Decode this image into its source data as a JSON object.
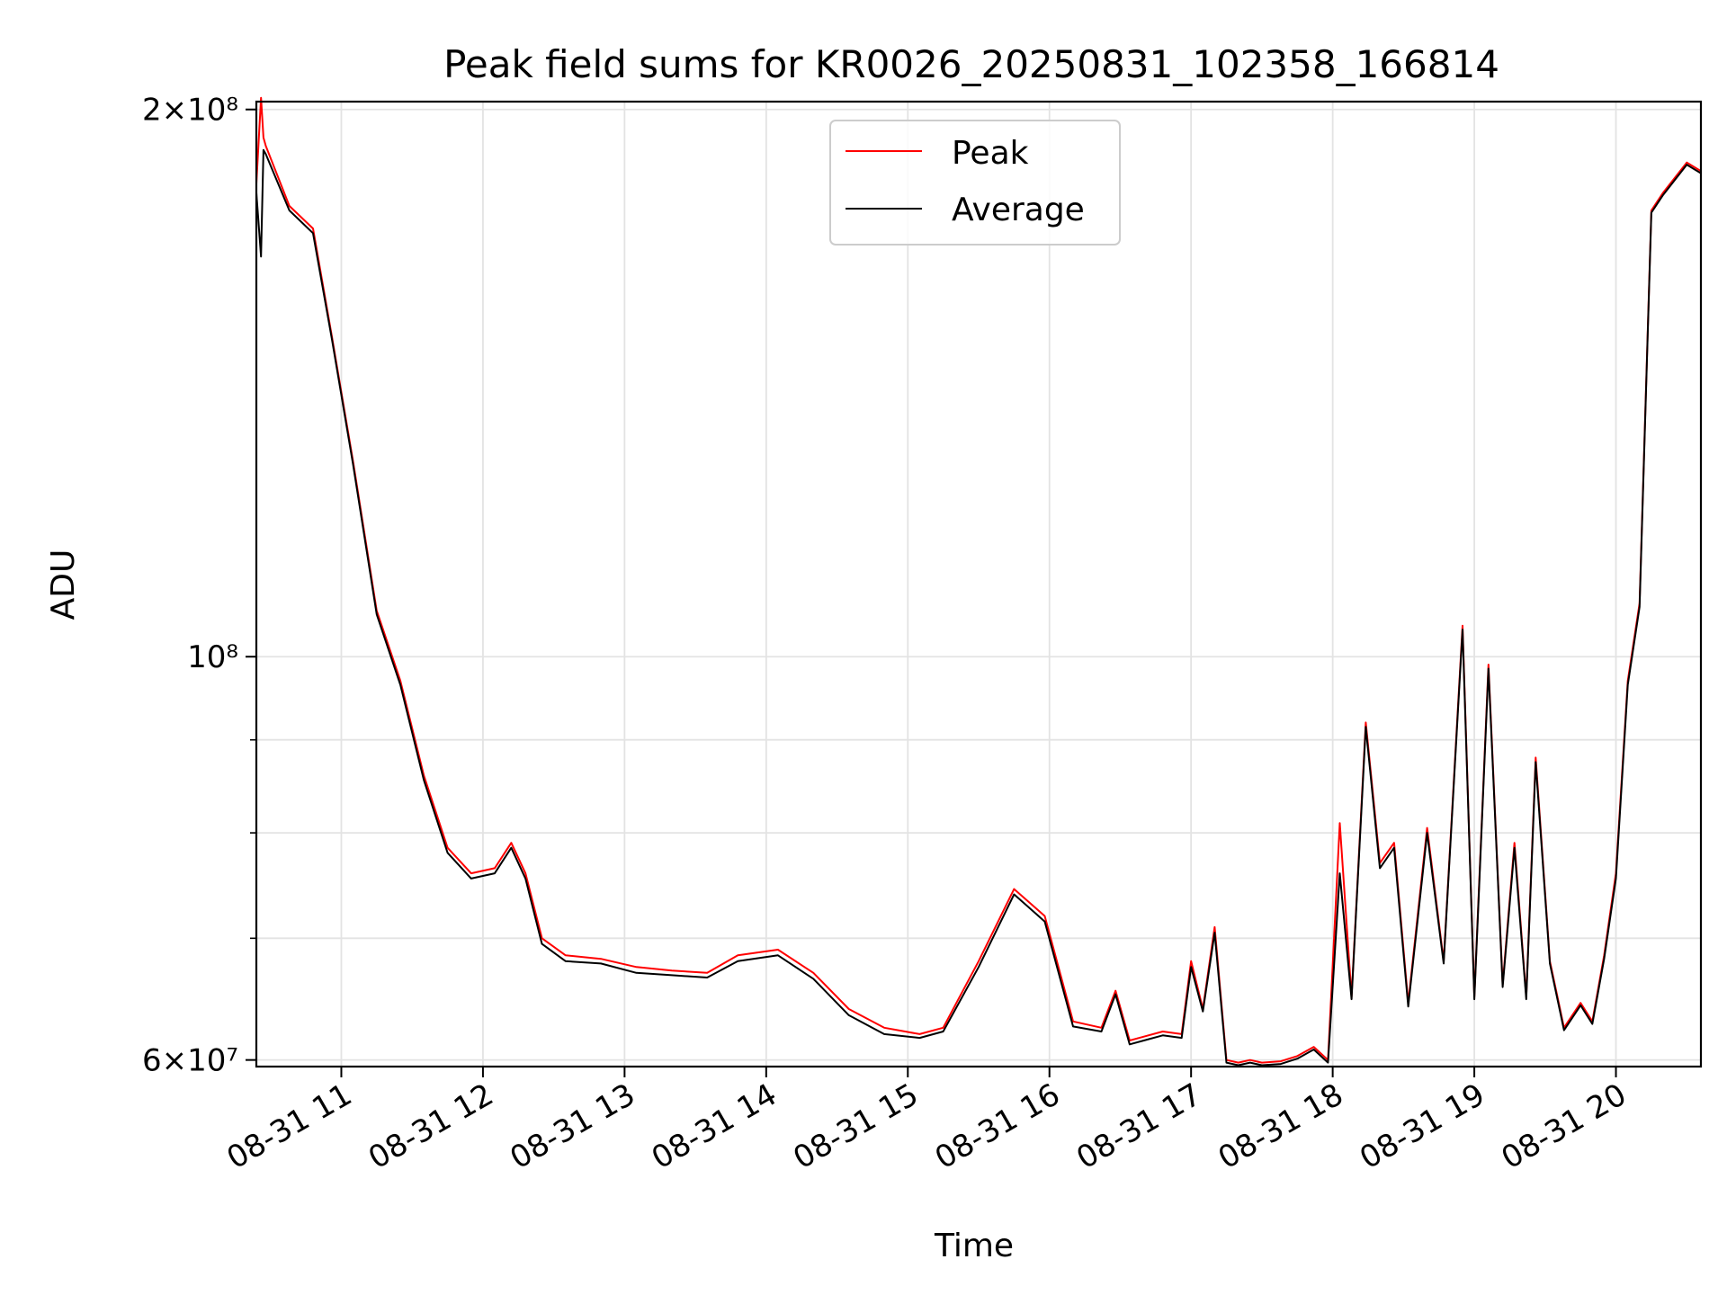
{
  "chart_data": {
    "type": "line",
    "title": "Peak field sums for KR0026_20250831_102358_166814",
    "xlabel": "Time",
    "ylabel": "ADU",
    "y_scale": "log",
    "grid": true,
    "legend_placement": "upper center",
    "xlim": [
      "2025-08-31 10:24",
      "2025-08-31 20:36"
    ],
    "ylim": [
      59500000,
      202000000
    ],
    "x_ticks": [
      {
        "value": "2025-08-31 11:00",
        "label": "08-31 11"
      },
      {
        "value": "2025-08-31 12:00",
        "label": "08-31 12"
      },
      {
        "value": "2025-08-31 13:00",
        "label": "08-31 13"
      },
      {
        "value": "2025-08-31 14:00",
        "label": "08-31 14"
      },
      {
        "value": "2025-08-31 15:00",
        "label": "08-31 15"
      },
      {
        "value": "2025-08-31 16:00",
        "label": "08-31 16"
      },
      {
        "value": "2025-08-31 17:00",
        "label": "08-31 17"
      },
      {
        "value": "2025-08-31 18:00",
        "label": "08-31 18"
      },
      {
        "value": "2025-08-31 19:00",
        "label": "08-31 19"
      },
      {
        "value": "2025-08-31 20:00",
        "label": "08-31 20"
      }
    ],
    "y_major_ticks": [
      {
        "value": 60000000,
        "label": "6×10⁷"
      },
      {
        "value": 100000000,
        "label": "10⁸"
      },
      {
        "value": 200000000,
        "label": "2×10⁸"
      }
    ],
    "y_minor_ticks": [
      70000000,
      80000000,
      90000000
    ],
    "series": [
      {
        "name": "Peak",
        "color": "#ff0000",
        "x": [
          "2025-08-31 10:24",
          "2025-08-31 10:26",
          "2025-08-31 10:27",
          "2025-08-31 10:28",
          "2025-08-31 10:38",
          "2025-08-31 10:48",
          "2025-08-31 10:56",
          "2025-08-31 11:05",
          "2025-08-31 11:15",
          "2025-08-31 11:25",
          "2025-08-31 11:35",
          "2025-08-31 11:45",
          "2025-08-31 11:55",
          "2025-08-31 12:05",
          "2025-08-31 12:12",
          "2025-08-31 12:18",
          "2025-08-31 12:25",
          "2025-08-31 12:35",
          "2025-08-31 12:50",
          "2025-08-31 13:05",
          "2025-08-31 13:20",
          "2025-08-31 13:35",
          "2025-08-31 13:48",
          "2025-08-31 14:05",
          "2025-08-31 14:20",
          "2025-08-31 14:35",
          "2025-08-31 14:50",
          "2025-08-31 15:05",
          "2025-08-31 15:15",
          "2025-08-31 15:30",
          "2025-08-31 15:45",
          "2025-08-31 15:58",
          "2025-08-31 16:10",
          "2025-08-31 16:22",
          "2025-08-31 16:28",
          "2025-08-31 16:34",
          "2025-08-31 16:40",
          "2025-08-31 16:48",
          "2025-08-31 16:56",
          "2025-08-31 17:00",
          "2025-08-31 17:05",
          "2025-08-31 17:10",
          "2025-08-31 17:15",
          "2025-08-31 17:20",
          "2025-08-31 17:25",
          "2025-08-31 17:30",
          "2025-08-31 17:38",
          "2025-08-31 17:45",
          "2025-08-31 17:52",
          "2025-08-31 17:58",
          "2025-08-31 18:03",
          "2025-08-31 18:08",
          "2025-08-31 18:14",
          "2025-08-31 18:20",
          "2025-08-31 18:26",
          "2025-08-31 18:32",
          "2025-08-31 18:40",
          "2025-08-31 18:47",
          "2025-08-31 18:55",
          "2025-08-31 19:00",
          "2025-08-31 19:06",
          "2025-08-31 19:12",
          "2025-08-31 19:17",
          "2025-08-31 19:22",
          "2025-08-31 19:26",
          "2025-08-31 19:32",
          "2025-08-31 19:38",
          "2025-08-31 19:45",
          "2025-08-31 19:50",
          "2025-08-31 19:55",
          "2025-08-31 20:00",
          "2025-08-31 20:05",
          "2025-08-31 20:10",
          "2025-08-31 20:15",
          "2025-08-31 20:20",
          "2025-08-31 20:30",
          "2025-08-31 20:36"
        ],
        "y": [
          182000000,
          203000000,
          193000000,
          191000000,
          177000000,
          172000000,
          150000000,
          128000000,
          106000000,
          97000000,
          86000000,
          78500000,
          76000000,
          76500000,
          79000000,
          76000000,
          70000000,
          68500000,
          68200000,
          67500000,
          67200000,
          67000000,
          68500000,
          69000000,
          67000000,
          64000000,
          62500000,
          62000000,
          62500000,
          68000000,
          74500000,
          72000000,
          63000000,
          62500000,
          65500000,
          61500000,
          61800000,
          62200000,
          62000000,
          68000000,
          64000000,
          71000000,
          60000000,
          59800000,
          60000000,
          59800000,
          59900000,
          60300000,
          61000000,
          60000000,
          81000000,
          65000000,
          92000000,
          77000000,
          79000000,
          64500000,
          80500000,
          68000000,
          104000000,
          65000000,
          99000000,
          66000000,
          79000000,
          65000000,
          88000000,
          68000000,
          62500000,
          64500000,
          63000000,
          68500000,
          76000000,
          97000000,
          107000000,
          176000000,
          180000000,
          187000000,
          185000000
        ]
      },
      {
        "name": "Average",
        "color": "#000000",
        "x": [
          "2025-08-31 10:24",
          "2025-08-31 10:26",
          "2025-08-31 10:27",
          "2025-08-31 10:28",
          "2025-08-31 10:38",
          "2025-08-31 10:48",
          "2025-08-31 10:56",
          "2025-08-31 11:05",
          "2025-08-31 11:15",
          "2025-08-31 11:25",
          "2025-08-31 11:35",
          "2025-08-31 11:45",
          "2025-08-31 11:55",
          "2025-08-31 12:05",
          "2025-08-31 12:12",
          "2025-08-31 12:18",
          "2025-08-31 12:25",
          "2025-08-31 12:35",
          "2025-08-31 12:50",
          "2025-08-31 13:05",
          "2025-08-31 13:20",
          "2025-08-31 13:35",
          "2025-08-31 13:48",
          "2025-08-31 14:05",
          "2025-08-31 14:20",
          "2025-08-31 14:35",
          "2025-08-31 14:50",
          "2025-08-31 15:05",
          "2025-08-31 15:15",
          "2025-08-31 15:30",
          "2025-08-31 15:45",
          "2025-08-31 15:58",
          "2025-08-31 16:10",
          "2025-08-31 16:22",
          "2025-08-31 16:28",
          "2025-08-31 16:34",
          "2025-08-31 16:40",
          "2025-08-31 16:48",
          "2025-08-31 16:56",
          "2025-08-31 17:00",
          "2025-08-31 17:05",
          "2025-08-31 17:10",
          "2025-08-31 17:15",
          "2025-08-31 17:20",
          "2025-08-31 17:25",
          "2025-08-31 17:30",
          "2025-08-31 17:38",
          "2025-08-31 17:45",
          "2025-08-31 17:52",
          "2025-08-31 17:58",
          "2025-08-31 18:03",
          "2025-08-31 18:08",
          "2025-08-31 18:14",
          "2025-08-31 18:20",
          "2025-08-31 18:26",
          "2025-08-31 18:32",
          "2025-08-31 18:40",
          "2025-08-31 18:47",
          "2025-08-31 18:55",
          "2025-08-31 19:00",
          "2025-08-31 19:06",
          "2025-08-31 19:12",
          "2025-08-31 19:17",
          "2025-08-31 19:22",
          "2025-08-31 19:26",
          "2025-08-31 19:32",
          "2025-08-31 19:38",
          "2025-08-31 19:45",
          "2025-08-31 19:50",
          "2025-08-31 19:55",
          "2025-08-31 20:00",
          "2025-08-31 20:05",
          "2025-08-31 20:10",
          "2025-08-31 20:15",
          "2025-08-31 20:20",
          "2025-08-31 20:30",
          "2025-08-31 20:36"
        ],
        "y": [
          180000000,
          166000000,
          190000000,
          189000000,
          176000000,
          171000000,
          149500000,
          127500000,
          105500000,
          96500000,
          85500000,
          78000000,
          75500000,
          76000000,
          78500000,
          75500000,
          69500000,
          68000000,
          67800000,
          67000000,
          66800000,
          66600000,
          68000000,
          68500000,
          66500000,
          63500000,
          62000000,
          61700000,
          62200000,
          67500000,
          74000000,
          71500000,
          62600000,
          62200000,
          65200000,
          61200000,
          61500000,
          61900000,
          61700000,
          67500000,
          63800000,
          70500000,
          59800000,
          59600000,
          59800000,
          59600000,
          59700000,
          60100000,
          60800000,
          59800000,
          76000000,
          64800000,
          91500000,
          76500000,
          78500000,
          64200000,
          80000000,
          67800000,
          103500000,
          64800000,
          98500000,
          65800000,
          78500000,
          64800000,
          87500000,
          67800000,
          62300000,
          64300000,
          62800000,
          68200000,
          75500000,
          96500000,
          106500000,
          175500000,
          179500000,
          186500000,
          184500000
        ]
      }
    ]
  }
}
